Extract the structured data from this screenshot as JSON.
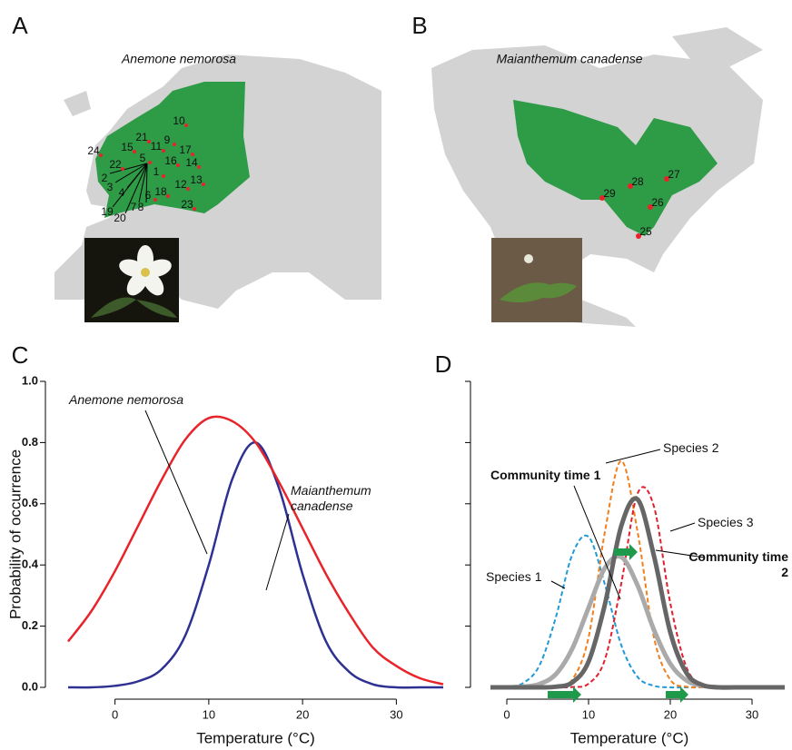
{
  "panel_labels": [
    "A",
    "B",
    "C",
    "D"
  ],
  "maps": [
    {
      "title": "Anemone nemorosa",
      "site_labels": [
        "1",
        "2",
        "3",
        "4",
        "5",
        "6",
        "7",
        "8",
        "9",
        "10",
        "11",
        "12",
        "13",
        "14",
        "15",
        "16",
        "17",
        "18",
        "19",
        "20",
        "21",
        "22",
        "23",
        "24"
      ]
    },
    {
      "title": "Maianthemum canadense",
      "site_labels": [
        "25",
        "26",
        "27",
        "28",
        "29"
      ]
    }
  ],
  "chart_data": [
    {
      "type": "line",
      "y_label": "Probability of occurrence",
      "x_label": "Temperature (°C)",
      "xlim": [
        -5,
        35
      ],
      "ylim": [
        0,
        1
      ],
      "xticks": [
        0,
        10,
        20,
        30
      ],
      "yticks": [
        {
          "value": 0,
          "label": "0.0"
        },
        {
          "value": 0.2,
          "label": "0.2"
        },
        {
          "value": 0.4,
          "label": "0.4"
        },
        {
          "value": 0.6,
          "label": "0.6"
        },
        {
          "value": 0.8,
          "label": "0.8"
        },
        {
          "value": 1,
          "label": "1.0"
        }
      ],
      "show_ytick_labels": true,
      "x": [
        -5,
        -2.5,
        0,
        2.5,
        5,
        7.5,
        10,
        12.5,
        15,
        17.5,
        20,
        22.5,
        25,
        27.5,
        30,
        32.5,
        35
      ],
      "series": [
        {
          "name": "Anemone nemorosa",
          "color": "#2e3192",
          "width": 2.5,
          "dashed": false,
          "values": [
            0,
            0,
            0.005,
            0.02,
            0.06,
            0.17,
            0.4,
            0.68,
            0.8,
            0.65,
            0.37,
            0.15,
            0.05,
            0.01,
            0,
            0,
            0
          ]
        },
        {
          "name": "Maianthemum canadense",
          "color": "#e8242a",
          "width": 2.5,
          "dashed": false,
          "values": [
            0.15,
            0.25,
            0.38,
            0.53,
            0.68,
            0.81,
            0.88,
            0.87,
            0.8,
            0.67,
            0.52,
            0.37,
            0.24,
            0.13,
            0.07,
            0.03,
            0.01
          ]
        }
      ]
    },
    {
      "type": "line",
      "x_label": "Temperature (°C)",
      "xlim": [
        -2,
        34
      ],
      "ylim": [
        0,
        1
      ],
      "xticks": [
        0,
        10,
        20,
        30
      ],
      "yticks": [
        0,
        0.2,
        0.4,
        0.6,
        0.8,
        1
      ],
      "show_ytick_labels": false,
      "x": [
        -2,
        0,
        2,
        4,
        6,
        8,
        10,
        12,
        14,
        16,
        18,
        20,
        22,
        24,
        26,
        28,
        30,
        32,
        34
      ],
      "series": [
        {
          "name": "Species 1",
          "color": "#1f9ad6",
          "width": 2,
          "dashed": true,
          "values": [
            0,
            0.002,
            0.014,
            0.072,
            0.229,
            0.433,
            0.492,
            0.336,
            0.138,
            0.034,
            0.005,
            0,
            0,
            0,
            0,
            0,
            0,
            0,
            0
          ]
        },
        {
          "name": "Species 2",
          "color": "#f07f1e",
          "width": 2,
          "dashed": true,
          "values": [
            0,
            0,
            0,
            0,
            0.002,
            0.025,
            0.163,
            0.508,
            0.74,
            0.508,
            0.163,
            0.025,
            0.002,
            0,
            0,
            0,
            0,
            0,
            0
          ]
        },
        {
          "name": "Species 3",
          "color": "#e0202f",
          "width": 2,
          "dashed": true,
          "values": [
            0,
            0,
            0,
            0,
            0,
            0.001,
            0.012,
            0.091,
            0.339,
            0.634,
            0.591,
            0.275,
            0.064,
            0.007,
            0,
            0,
            0,
            0,
            0
          ]
        },
        {
          "name": "Community time 1",
          "color": "#aaaaaa",
          "width": 5,
          "dashed": false,
          "values": [
            0,
            0,
            0.002,
            0.011,
            0.043,
            0.126,
            0.26,
            0.39,
            0.426,
            0.333,
            0.188,
            0.077,
            0.022,
            0.005,
            0,
            0,
            0,
            0,
            0
          ]
        },
        {
          "name": "Community time 2",
          "color": "#666666",
          "width": 5,
          "dashed": false,
          "values": [
            0,
            0,
            0,
            0,
            0.002,
            0.016,
            0.084,
            0.271,
            0.527,
            0.614,
            0.43,
            0.18,
            0.046,
            0.007,
            0,
            0,
            0,
            0,
            0
          ]
        }
      ]
    }
  ]
}
